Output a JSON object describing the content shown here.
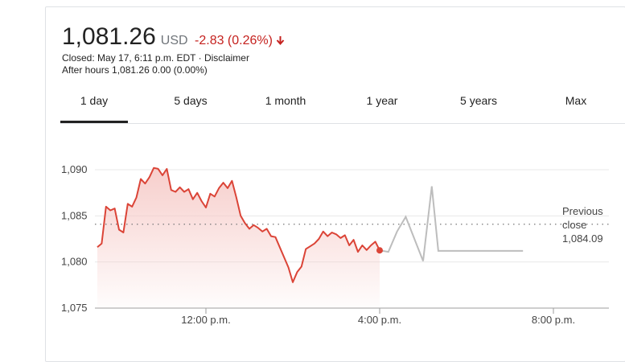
{
  "quote": {
    "price": "1,081.26",
    "currency": "USD",
    "change": "-2.83 (0.26%)",
    "closed_text": "Closed: May 17, 6:11 p.m. EDT · Disclaimer",
    "after_hours_text": "After hours 1,081.26 0.00 (0.00%)"
  },
  "tabs": [
    {
      "label": "1 day",
      "active": true
    },
    {
      "label": "5 days"
    },
    {
      "label": "1 month"
    },
    {
      "label": "1 year"
    },
    {
      "label": "5 years"
    },
    {
      "label": "Max"
    }
  ],
  "colors": {
    "negative": "#c5221f",
    "line_regular": "#db4437",
    "line_after_hours": "#bdbdbd",
    "fill": "#f6c9c6",
    "grid": "#e8e8e8",
    "baseline": "#9e9e9e"
  },
  "chart_data": {
    "type": "line",
    "ylim": [
      1075,
      1091
    ],
    "yticks": [
      1075,
      1080,
      1085,
      1090
    ],
    "ytick_labels": [
      "1,075",
      "1,080",
      "1,085",
      "1,090"
    ],
    "xticks": [
      "12:00 p.m.",
      "4:00 p.m.",
      "8:00 p.m."
    ],
    "x_range_hours": [
      9.5,
      20.25
    ],
    "xtick_hours": [
      12,
      16,
      20
    ],
    "previous_close": {
      "label_line1": "Previous",
      "label_line2": "close",
      "value_text": "1,084.09",
      "value": 1084.09
    },
    "series": [
      {
        "session": "regular",
        "x": [
          9.5,
          9.6,
          9.7,
          9.8,
          9.9,
          10.0,
          10.1,
          10.2,
          10.3,
          10.4,
          10.5,
          10.6,
          10.7,
          10.8,
          10.9,
          11.0,
          11.1,
          11.2,
          11.3,
          11.4,
          11.5,
          11.6,
          11.7,
          11.8,
          11.9,
          12.0,
          12.1,
          12.2,
          12.3,
          12.4,
          12.5,
          12.6,
          12.7,
          12.8,
          12.9,
          13.0,
          13.1,
          13.2,
          13.3,
          13.4,
          13.5,
          13.6,
          13.7,
          13.8,
          13.9,
          14.0,
          14.1,
          14.2,
          14.3,
          14.4,
          14.5,
          14.6,
          14.7,
          14.8,
          14.9,
          15.0,
          15.1,
          15.2,
          15.3,
          15.4,
          15.5,
          15.6,
          15.7,
          15.8,
          15.9,
          16.0
        ],
        "y": [
          1081.6,
          1082.0,
          1086.0,
          1085.6,
          1085.8,
          1083.5,
          1083.2,
          1086.3,
          1086.0,
          1087.0,
          1089.0,
          1088.5,
          1089.2,
          1090.2,
          1090.1,
          1089.4,
          1090.1,
          1087.8,
          1087.6,
          1088.1,
          1087.6,
          1087.9,
          1086.8,
          1087.5,
          1086.6,
          1085.9,
          1087.4,
          1087.1,
          1088.0,
          1088.6,
          1088.0,
          1088.8,
          1087.0,
          1085.0,
          1084.2,
          1083.6,
          1084.0,
          1083.7,
          1083.3,
          1083.6,
          1082.8,
          1082.7,
          1081.6,
          1080.5,
          1079.4,
          1077.8,
          1078.9,
          1079.5,
          1081.4,
          1081.7,
          1082.0,
          1082.5,
          1083.3,
          1082.8,
          1083.2,
          1083.0,
          1082.6,
          1082.9,
          1081.8,
          1082.4,
          1081.1,
          1081.8,
          1081.3,
          1081.8,
          1082.2,
          1081.26
        ]
      },
      {
        "session": "after-hours",
        "x": [
          16.0,
          16.2,
          16.4,
          16.6,
          17.0,
          17.2,
          17.35,
          17.5,
          18.0,
          18.5,
          19.0,
          19.3
        ],
        "y": [
          1081.26,
          1081.1,
          1083.3,
          1084.9,
          1080.1,
          1088.2,
          1081.2,
          1081.2,
          1081.2,
          1081.2,
          1081.2,
          1081.2
        ]
      }
    ]
  }
}
